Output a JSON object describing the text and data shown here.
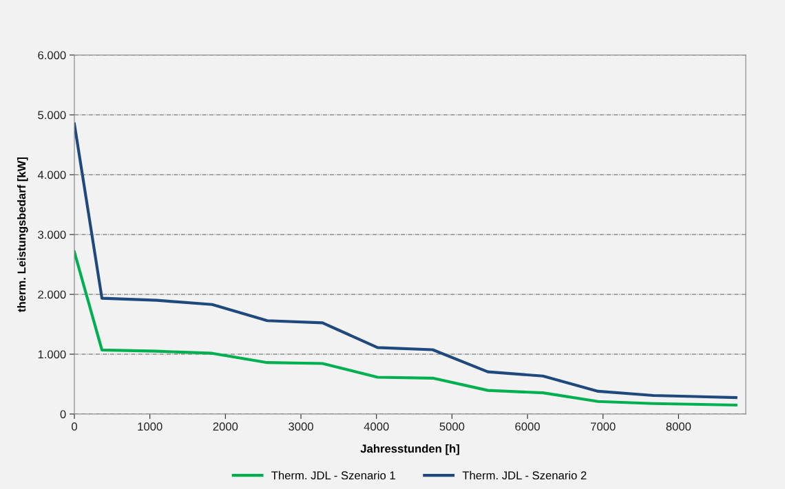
{
  "chart_data": {
    "type": "line",
    "xlabel": "Jahresstunden [h]",
    "ylabel": "therm. Leistungsbedarf [kW]",
    "x": [
      0,
      365,
      1095,
      1825,
      2555,
      3285,
      4015,
      4745,
      5475,
      6205,
      6935,
      7665,
      8760
    ],
    "series": [
      {
        "name": "Therm. JDL - Szenario 1",
        "color": "#00b050",
        "values": [
          2710,
          1070,
          1050,
          1015,
          860,
          845,
          615,
          600,
          395,
          355,
          210,
          175,
          150
        ]
      },
      {
        "name": "Therm. JDL - Szenario 2",
        "color": "#1f497d",
        "values": [
          4850,
          1935,
          1900,
          1830,
          1560,
          1525,
          1110,
          1075,
          705,
          635,
          380,
          310,
          275
        ]
      }
    ],
    "xlim": [
      0,
      8890
    ],
    "xticks": [
      0,
      1000,
      2000,
      3000,
      4000,
      5000,
      6000,
      7000,
      8000
    ],
    "ylim": [
      0,
      6000
    ],
    "yticks": [
      {
        "value": 0,
        "label": "0"
      },
      {
        "value": 1000,
        "label": "1.000"
      },
      {
        "value": 2000,
        "label": "2.000"
      },
      {
        "value": 3000,
        "label": "3.000"
      },
      {
        "value": 4000,
        "label": "4.000"
      },
      {
        "value": 5000,
        "label": "5.000"
      },
      {
        "value": 6000,
        "label": "6.000"
      }
    ],
    "grid": "y",
    "legend": "bottom",
    "marker": "none",
    "line_style": "solid"
  }
}
